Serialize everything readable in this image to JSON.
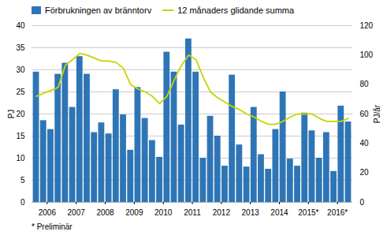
{
  "chart_data": {
    "type": "bar",
    "categories": [
      null,
      "2006",
      null,
      null,
      null,
      "2007",
      null,
      null,
      null,
      "2008",
      null,
      null,
      null,
      "2009",
      null,
      null,
      null,
      "2010",
      null,
      null,
      null,
      "2011",
      null,
      null,
      null,
      "2012",
      null,
      null,
      null,
      "2013",
      null,
      null,
      null,
      "2014",
      null,
      null,
      null,
      "2015*",
      null,
      null,
      null,
      "2016*",
      null,
      null
    ],
    "series": [
      {
        "name": "Förbrukningen av bränntorv",
        "type": "bar",
        "color": "#2e75b6",
        "values": [
          29.5,
          18.5,
          16.5,
          29.0,
          31.5,
          21.5,
          33.0,
          29.0,
          15.8,
          18.0,
          15.5,
          25.5,
          19.8,
          11.8,
          26.0,
          19.0,
          14.0,
          10.2,
          34.0,
          29.5,
          17.5,
          37.0,
          29.5,
          10.0,
          19.5,
          15.0,
          8.2,
          28.8,
          13.0,
          8.0,
          21.5,
          10.8,
          7.5,
          16.5,
          25.0,
          9.8,
          8.2,
          20.2,
          16.2,
          10.0,
          15.8,
          7.0,
          21.8,
          18.2
        ]
      },
      {
        "name": "12 månaders glidande summa",
        "type": "line",
        "color": "#c8d400",
        "axis": "y2",
        "values": [
          72,
          74,
          76,
          78,
          93,
          97,
          101,
          100,
          98,
          96,
          96,
          95,
          91,
          80,
          77,
          75,
          72,
          67,
          72,
          83,
          93,
          100,
          97,
          85,
          75,
          71,
          68,
          65,
          63,
          60,
          58,
          55,
          53,
          53,
          55,
          58,
          60,
          60,
          60,
          57,
          55,
          55,
          55,
          57
        ]
      }
    ],
    "ylabel": "PJ",
    "y2label": "PJ/år",
    "ylim": [
      0,
      40
    ],
    "yticks": [
      0,
      5,
      10,
      15,
      20,
      25,
      30,
      35,
      40
    ],
    "y2lim": [
      0,
      120
    ],
    "y2ticks": [
      0,
      20,
      40,
      60,
      80,
      100,
      120
    ],
    "grid": true,
    "legend": "upper left",
    "annotations": [
      "* Preliminär"
    ]
  }
}
